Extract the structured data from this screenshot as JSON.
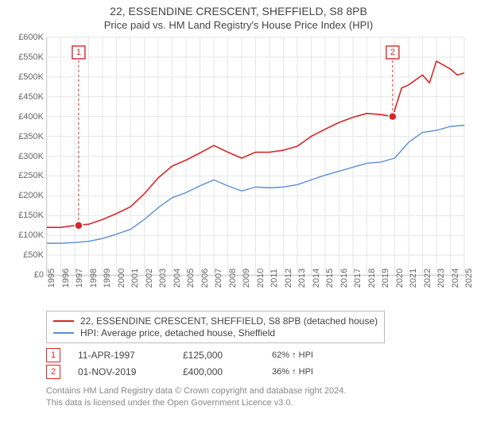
{
  "title": "22, ESSENDINE CRESCENT, SHEFFIELD, S8 8PB",
  "subtitle": "Price paid vs. HM Land Registry's House Price Index (HPI)",
  "chart": {
    "type": "line",
    "background_color": "#ffffff",
    "grid_color": "#e6e6e6",
    "axis_color": "#bbbbbb",
    "label_fontsize": 11,
    "label_color": "#666666",
    "ylim": [
      0,
      600000
    ],
    "ytick_step": 50000,
    "ytick_prefix": "£",
    "ytick_suffix": "K",
    "xlim": [
      1995,
      2025
    ],
    "xtick_step": 1,
    "series": [
      {
        "id": "price_paid",
        "label": "22, ESSENDINE CRESCENT, SHEFFIELD, S8 8PB (detached house)",
        "color": "#d62728",
        "line_width": 1.6,
        "x": [
          1995,
          1996,
          1997,
          1998,
          1999,
          2000,
          2001,
          2002,
          2003,
          2004,
          2005,
          2006,
          2007,
          2008,
          2009,
          2010,
          2011,
          2012,
          2013,
          2014,
          2015,
          2016,
          2017,
          2018,
          2019,
          2019.85,
          2020.5,
          2021,
          2022,
          2022.5,
          2023,
          2024,
          2024.5,
          2025
        ],
        "y": [
          120000,
          120000,
          125000,
          128000,
          140000,
          155000,
          172000,
          205000,
          245000,
          275000,
          290000,
          308000,
          327000,
          310000,
          295000,
          310000,
          310000,
          315000,
          325000,
          350000,
          368000,
          385000,
          398000,
          408000,
          405000,
          400000,
          472000,
          480000,
          505000,
          485000,
          540000,
          520000,
          505000,
          510000
        ]
      },
      {
        "id": "hpi",
        "label": "HPI: Average price, detached house, Sheffield",
        "color": "#5b8fd6",
        "line_width": 1.4,
        "x": [
          1995,
          1996,
          1997,
          1998,
          1999,
          2000,
          2001,
          2002,
          2003,
          2004,
          2005,
          2006,
          2007,
          2008,
          2009,
          2010,
          2011,
          2012,
          2013,
          2014,
          2015,
          2016,
          2017,
          2018,
          2019,
          2020,
          2021,
          2022,
          2023,
          2024,
          2025
        ],
        "y": [
          80000,
          80000,
          82000,
          85000,
          92000,
          103000,
          115000,
          140000,
          170000,
          195000,
          208000,
          225000,
          240000,
          225000,
          212000,
          222000,
          220000,
          222000,
          228000,
          240000,
          252000,
          262000,
          272000,
          282000,
          285000,
          295000,
          335000,
          360000,
          365000,
          375000,
          378000
        ]
      }
    ],
    "markers": [
      {
        "n": "1",
        "x": 1997.28,
        "y": 125000,
        "box_y": 560000
      },
      {
        "n": "2",
        "x": 2019.85,
        "y": 400000,
        "box_y": 560000
      }
    ]
  },
  "legend": {
    "border_color": "#bbbbbb",
    "items": [
      {
        "color": "#d62728",
        "label": "22, ESSENDINE CRESCENT, SHEFFIELD, S8 8PB (detached house)"
      },
      {
        "color": "#5b8fd6",
        "label": "HPI: Average price, detached house, Sheffield"
      }
    ]
  },
  "transactions": [
    {
      "n": "1",
      "date": "11-APR-1997",
      "price": "£125,000",
      "delta": "62% ↑ HPI"
    },
    {
      "n": "2",
      "date": "01-NOV-2019",
      "price": "£400,000",
      "delta": "36% ↑ HPI"
    }
  ],
  "footer_line1": "Contains HM Land Registry data © Crown copyright and database right 2024.",
  "footer_line2": "This data is licensed under the Open Government Licence v3.0."
}
